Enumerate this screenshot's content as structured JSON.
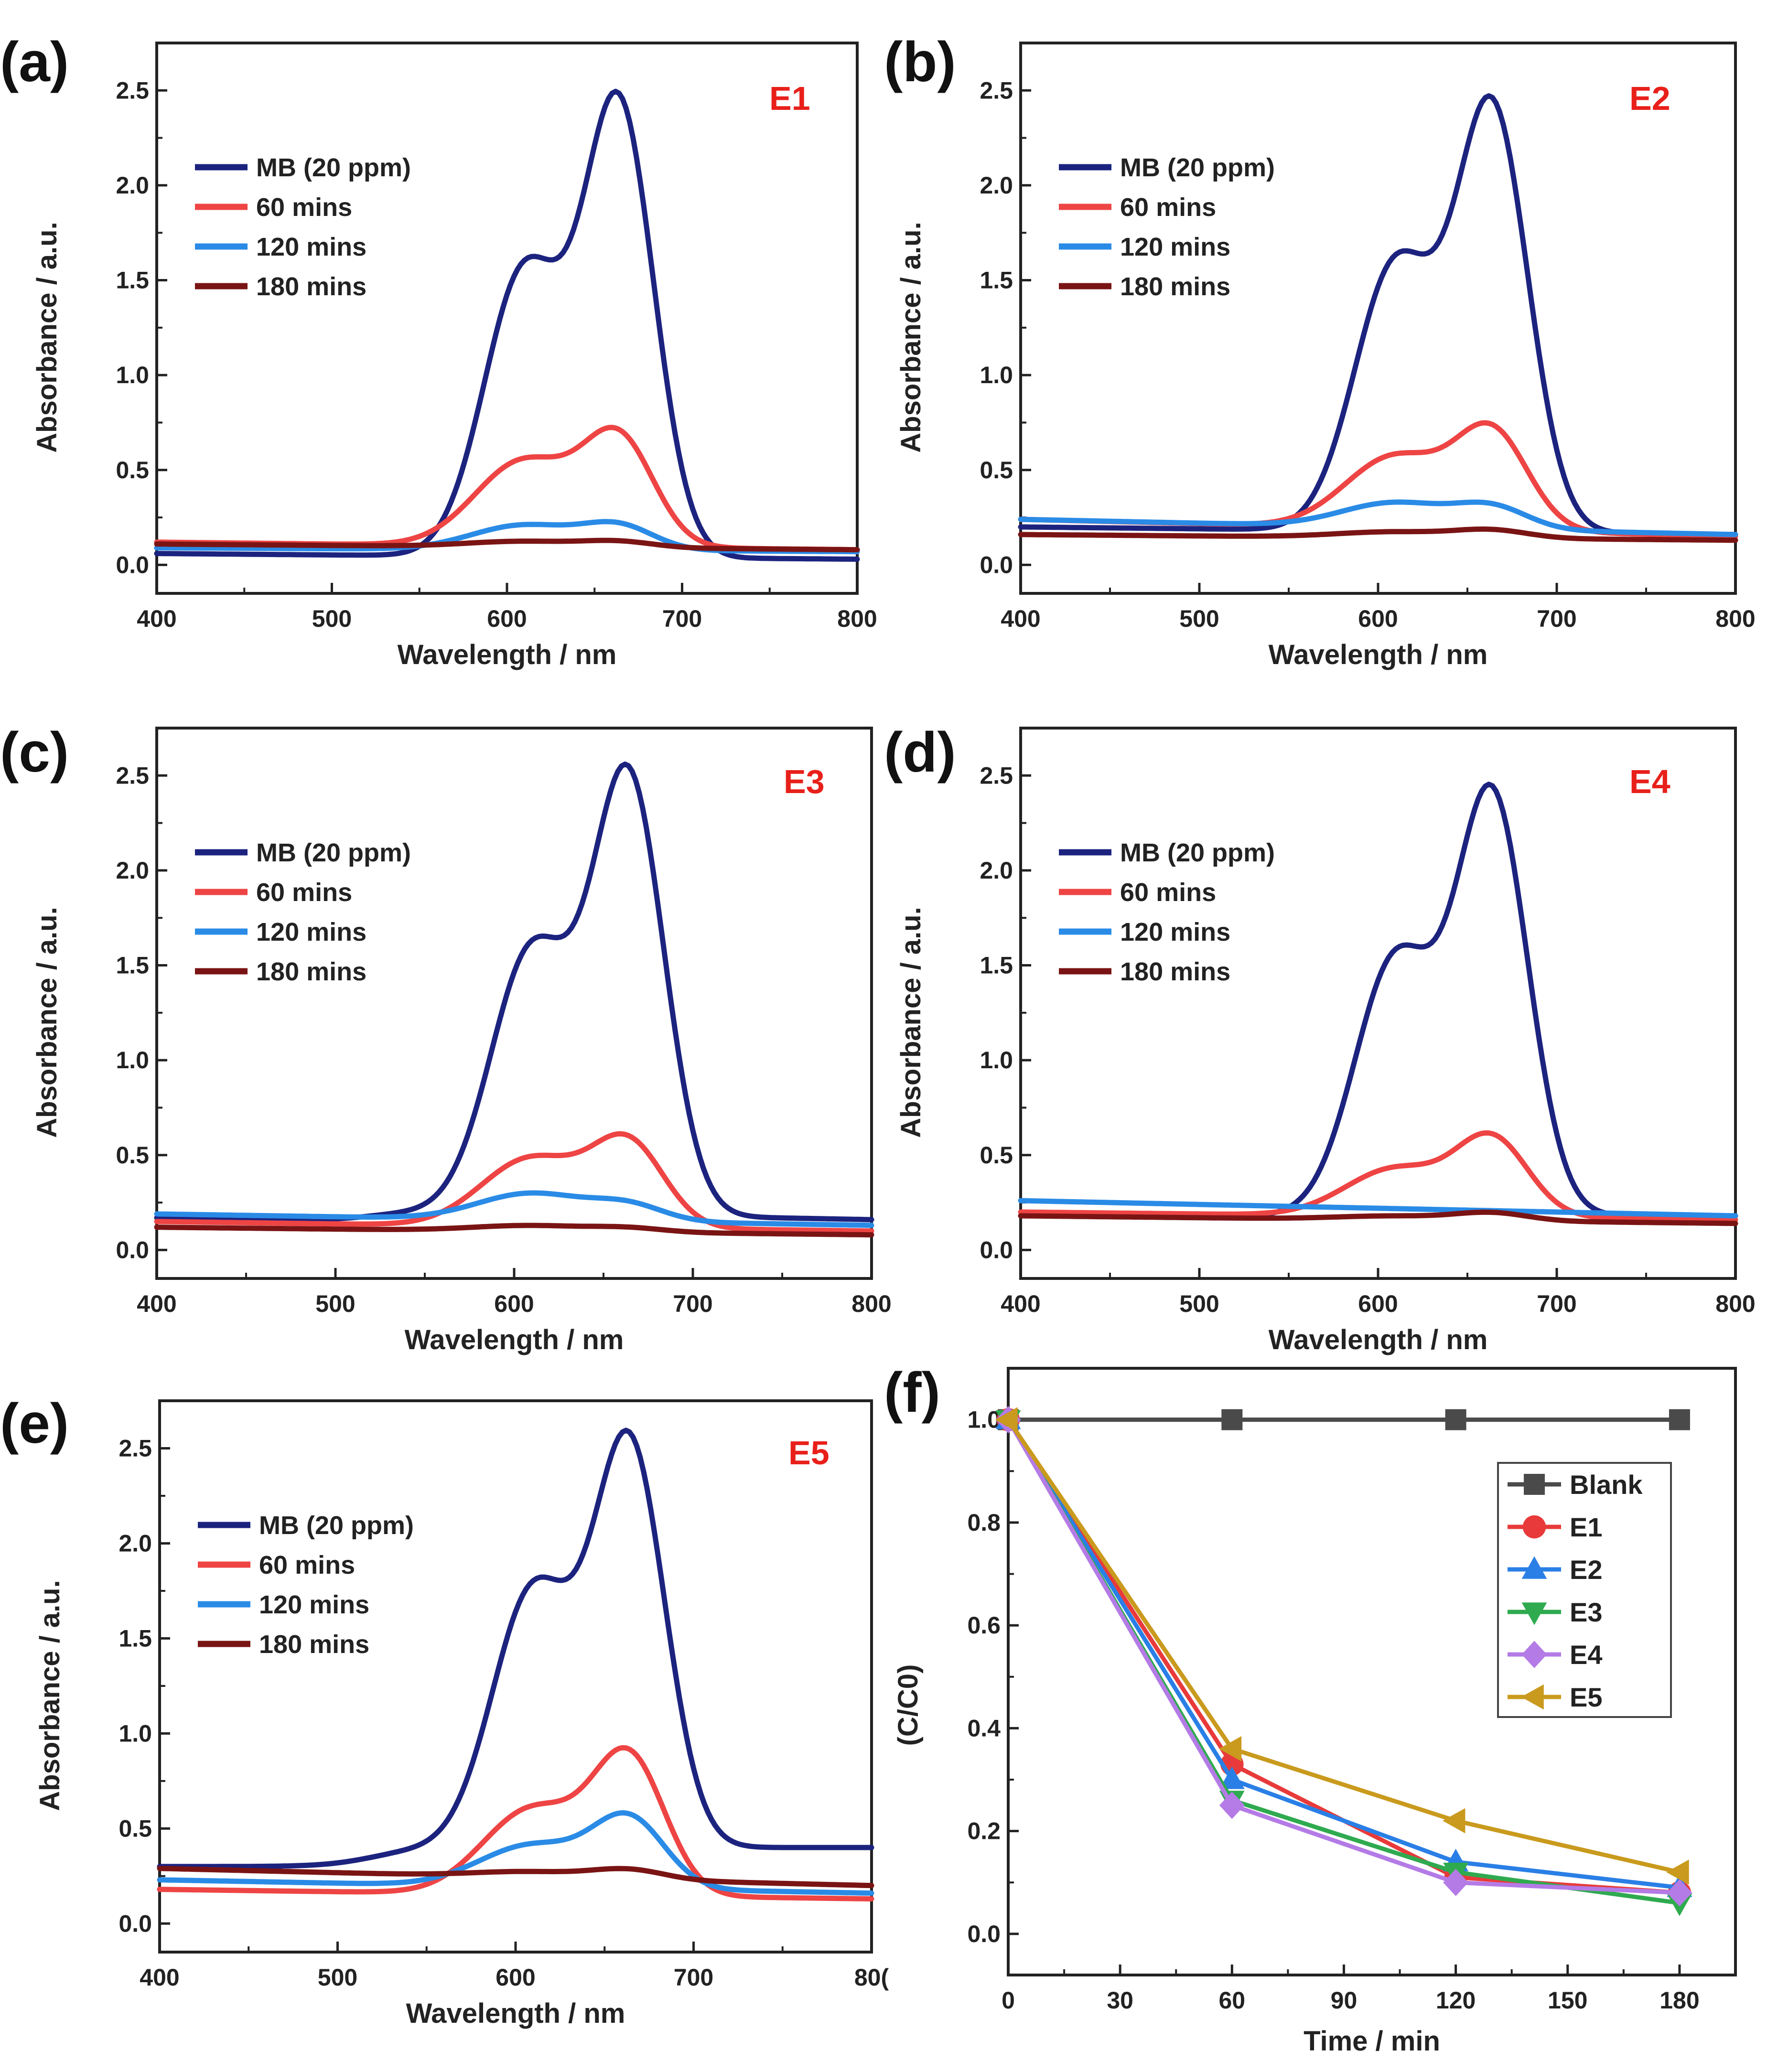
{
  "figure": {
    "colors": {
      "mb": "#1c237e",
      "t60": "#ee4444",
      "t120": "#2a8be6",
      "t180": "#7a1414",
      "label_red": "#e8201a",
      "blank": "#4a4a4a",
      "E1": "#e83a3a",
      "E2": "#2a7fe6",
      "E3": "#2faa4f",
      "E4": "#b47be6",
      "E5": "#c99a1d"
    }
  },
  "chart_data": [
    {
      "panel": "(a)",
      "type": "line",
      "sample": "E1",
      "xlabel": "Wavelength / nm",
      "ylabel": "Absorbance / a.u.",
      "xlim": [
        400,
        800
      ],
      "ylim": [
        -0.15,
        2.75
      ],
      "xticks": [
        "400",
        "500",
        "600",
        "700",
        "800"
      ],
      "yticks": [
        "0.0",
        "0.5",
        "1.0",
        "1.5",
        "2.0",
        "2.5"
      ],
      "legend_position": "upper-left",
      "series": [
        {
          "name": "MB (20 ppm)",
          "color_key": "mb",
          "base0": 0.06,
          "base1": 0.03,
          "slope": 0,
          "shoulder": 1.5,
          "peak": 2.35,
          "shw": 23
        },
        {
          "name": "60 mins",
          "color_key": "t60",
          "base0": 0.12,
          "base1": 0.08,
          "slope": 0,
          "shoulder": 0.45,
          "peak": 0.55,
          "shw": 28
        },
        {
          "name": "120 mins",
          "color_key": "t120",
          "base0": 0.09,
          "base1": 0.07,
          "slope": 0,
          "shoulder": 0.13,
          "peak": 0.12,
          "shw": 30
        },
        {
          "name": "180 mins",
          "color_key": "t180",
          "base0": 0.11,
          "base1": 0.08,
          "slope": 0,
          "shoulder": 0.03,
          "peak": 0.03,
          "shw": 32
        }
      ]
    },
    {
      "panel": "(b)",
      "type": "line",
      "sample": "E2",
      "xlabel": "Wavelength / nm",
      "ylabel": "Absorbance / a.u.",
      "xlim": [
        400,
        800
      ],
      "ylim": [
        -0.15,
        2.75
      ],
      "xticks": [
        "400",
        "500",
        "600",
        "700",
        "800"
      ],
      "yticks": [
        "0.0",
        "0.5",
        "1.0",
        "1.5",
        "2.0",
        "2.5"
      ],
      "legend_position": "upper-left",
      "series": [
        {
          "name": "MB (20 ppm)",
          "color_key": "mb",
          "base0": 0.2,
          "base1": 0.16,
          "slope": 0,
          "shoulder": 1.4,
          "peak": 2.2,
          "shw": 23
        },
        {
          "name": "60 mins",
          "color_key": "t60",
          "base0": 0.24,
          "base1": 0.15,
          "slope": 0,
          "shoulder": 0.38,
          "peak": 0.5,
          "shw": 28
        },
        {
          "name": "120 mins",
          "color_key": "t120",
          "base0": 0.24,
          "base1": 0.16,
          "slope": 0,
          "shoulder": 0.13,
          "peak": 0.11,
          "shw": 30
        },
        {
          "name": "180 mins",
          "color_key": "t180",
          "base0": 0.16,
          "base1": 0.13,
          "slope": 0,
          "shoulder": 0.03,
          "peak": 0.04,
          "shw": 32
        }
      ]
    },
    {
      "panel": "(c)",
      "type": "line",
      "sample": "E3",
      "xlabel": "Wavelength / nm",
      "ylabel": "Absorbance / a.u.",
      "xlim": [
        400,
        800
      ],
      "ylim": [
        -0.15,
        2.75
      ],
      "xticks": [
        "400",
        "500",
        "600",
        "700",
        "800"
      ],
      "yticks": [
        "0.0",
        "0.5",
        "1.0",
        "1.5",
        "2.0",
        "2.5"
      ],
      "legend_position": "upper-left",
      "series": [
        {
          "name": "MB (20 ppm)",
          "color_key": "mb",
          "base0": 0.17,
          "base1": 0.1,
          "slope": 0.06,
          "shoulder": 1.38,
          "peak": 2.28,
          "shw": 23
        },
        {
          "name": "60 mins",
          "color_key": "t60",
          "base0": 0.15,
          "base1": 0.1,
          "slope": 0,
          "shoulder": 0.36,
          "peak": 0.43,
          "shw": 28
        },
        {
          "name": "120 mins",
          "color_key": "t120",
          "base0": 0.19,
          "base1": 0.13,
          "slope": 0,
          "shoulder": 0.14,
          "peak": 0.08,
          "shw": 30
        },
        {
          "name": "180 mins",
          "color_key": "t180",
          "base0": 0.12,
          "base1": 0.08,
          "slope": 0,
          "shoulder": 0.03,
          "peak": 0.02,
          "shw": 32
        }
      ]
    },
    {
      "panel": "(d)",
      "type": "line",
      "sample": "E4",
      "xlabel": "Wavelength / nm",
      "ylabel": "Absorbance / a.u.",
      "xlim": [
        400,
        800
      ],
      "ylim": [
        -0.15,
        2.75
      ],
      "xticks": [
        "400",
        "500",
        "600",
        "700",
        "800"
      ],
      "yticks": [
        "0.0",
        "0.5",
        "1.0",
        "1.5",
        "2.0",
        "2.5"
      ],
      "legend_position": "upper-left",
      "series": [
        {
          "name": "MB (20 ppm)",
          "color_key": "mb",
          "base0": 0.18,
          "base1": 0.18,
          "slope": 0,
          "shoulder": 1.35,
          "peak": 2.18,
          "shw": 23
        },
        {
          "name": "60 mins",
          "color_key": "t60",
          "base0": 0.2,
          "base1": 0.16,
          "slope": 0,
          "shoulder": 0.25,
          "peak": 0.4,
          "shw": 28
        },
        {
          "name": "120 mins",
          "color_key": "t120",
          "base0": 0.26,
          "base1": 0.18,
          "slope": 0,
          "shoulder": 0,
          "peak": 0,
          "shw": 30
        },
        {
          "name": "180 mins",
          "color_key": "t180",
          "base0": 0.18,
          "base1": 0.14,
          "slope": 0,
          "shoulder": 0.02,
          "peak": 0.04,
          "shw": 32
        }
      ]
    },
    {
      "panel": "(e)",
      "type": "line",
      "sample": "E5",
      "xlabel": "Wavelength / nm",
      "ylabel": "Absorbance / a.u.",
      "xlim": [
        400,
        800
      ],
      "ylim": [
        -0.15,
        2.75
      ],
      "xticks": [
        "400",
        "500",
        "600",
        "700",
        "80("
      ],
      "yticks": [
        "0.0",
        "0.5",
        "1.0",
        "1.5",
        "2.0",
        "2.5"
      ],
      "legend_position": "upper-left",
      "series": [
        {
          "name": "MB (20 ppm)",
          "color_key": "mb",
          "base0": 0.3,
          "base1": 0.3,
          "slope": 0.1,
          "shoulder": 1.35,
          "peak": 2.1,
          "shw": 23
        },
        {
          "name": "60 mins",
          "color_key": "t60",
          "base0": 0.18,
          "base1": 0.13,
          "slope": 0,
          "shoulder": 0.45,
          "peak": 0.7,
          "shw": 28
        },
        {
          "name": "120 mins",
          "color_key": "t120",
          "base0": 0.23,
          "base1": 0.16,
          "slope": 0,
          "shoulder": 0.22,
          "peak": 0.35,
          "shw": 30
        },
        {
          "name": "180 mins",
          "color_key": "t180",
          "base0": 0.29,
          "base1": 0.2,
          "slope": 0,
          "shoulder": 0.03,
          "peak": 0.05,
          "shw": 32
        }
      ]
    },
    {
      "panel": "(f)",
      "type": "line",
      "xlabel": "Time / min",
      "ylabel": "(C/C0)",
      "xlim": [
        0,
        195
      ],
      "ylim": [
        -0.08,
        1.1
      ],
      "xticks": [
        "0",
        "30",
        "60",
        "90",
        "120",
        "150",
        "180"
      ],
      "yticks": [
        "0.0",
        "0.2",
        "0.4",
        "0.6",
        "0.8",
        "1.0"
      ],
      "legend_position": "right",
      "x": [
        0,
        60,
        120,
        180
      ],
      "series": [
        {
          "name": "Blank",
          "color_key": "blank",
          "marker": "square",
          "values": [
            1.0,
            1.0,
            1.0,
            1.0
          ]
        },
        {
          "name": "E1",
          "color_key": "E1",
          "marker": "circle",
          "values": [
            1.0,
            0.33,
            0.11,
            0.08
          ]
        },
        {
          "name": "E2",
          "color_key": "E2",
          "marker": "triangle-up",
          "values": [
            1.0,
            0.3,
            0.14,
            0.09
          ]
        },
        {
          "name": "E3",
          "color_key": "E3",
          "marker": "triangle-down",
          "values": [
            1.0,
            0.26,
            0.12,
            0.06
          ]
        },
        {
          "name": "E4",
          "color_key": "E4",
          "marker": "diamond",
          "values": [
            1.0,
            0.25,
            0.1,
            0.08
          ]
        },
        {
          "name": "E5",
          "color_key": "E5",
          "marker": "triangle-left",
          "values": [
            1.0,
            0.36,
            0.22,
            0.12
          ]
        }
      ]
    }
  ]
}
